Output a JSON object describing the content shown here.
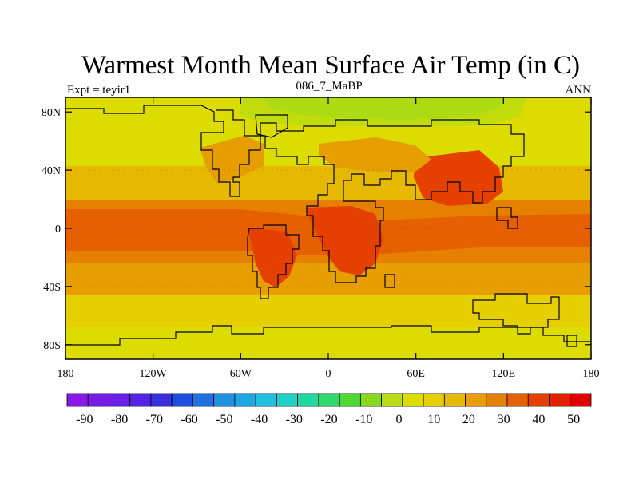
{
  "figure": {
    "title": "Warmest Month Mean Surface Air Temp (in C)",
    "left_label": "Expt = teyir1",
    "center_label": "086_7_MaBP",
    "right_label": "ANN"
  },
  "map": {
    "projection": "cylindrical equidistant",
    "lon_range": [
      -180,
      180
    ],
    "lat_range": [
      -90,
      90
    ],
    "lat_ticks": [
      {
        "value": 80,
        "label": "80N"
      },
      {
        "value": 40,
        "label": "40N"
      },
      {
        "value": 0,
        "label": "0"
      },
      {
        "value": -40,
        "label": "40S"
      },
      {
        "value": -80,
        "label": "80S"
      }
    ],
    "lon_ticks": [
      {
        "value": -180,
        "label": "180"
      },
      {
        "value": -120,
        "label": "120W"
      },
      {
        "value": -60,
        "label": "60W"
      },
      {
        "value": 0,
        "label": "0"
      },
      {
        "value": 60,
        "label": "60E"
      },
      {
        "value": 120,
        "label": "120E"
      },
      {
        "value": 180,
        "label": "180"
      }
    ]
  },
  "colorbar": {
    "min": -95,
    "max": 55,
    "step": 5,
    "labels": [
      "-90",
      "-80",
      "-70",
      "-60",
      "-50",
      "-40",
      "-30",
      "-20",
      "-10",
      "0",
      "10",
      "20",
      "30",
      "40",
      "50"
    ],
    "colors": [
      "#8a18e6",
      "#7a1ae6",
      "#6a20e6",
      "#5525e6",
      "#3a30e0",
      "#1f4fe0",
      "#1f6fe0",
      "#2090e0",
      "#1fa8e0",
      "#20bfe0",
      "#20d0c8",
      "#22d8a0",
      "#30d870",
      "#50d835",
      "#88d820",
      "#b8dc10",
      "#dcdc00",
      "#e6cf00",
      "#e6b800",
      "#e69e00",
      "#e68000",
      "#e66000",
      "#e64000",
      "#e32000",
      "#e00000"
    ]
  }
}
